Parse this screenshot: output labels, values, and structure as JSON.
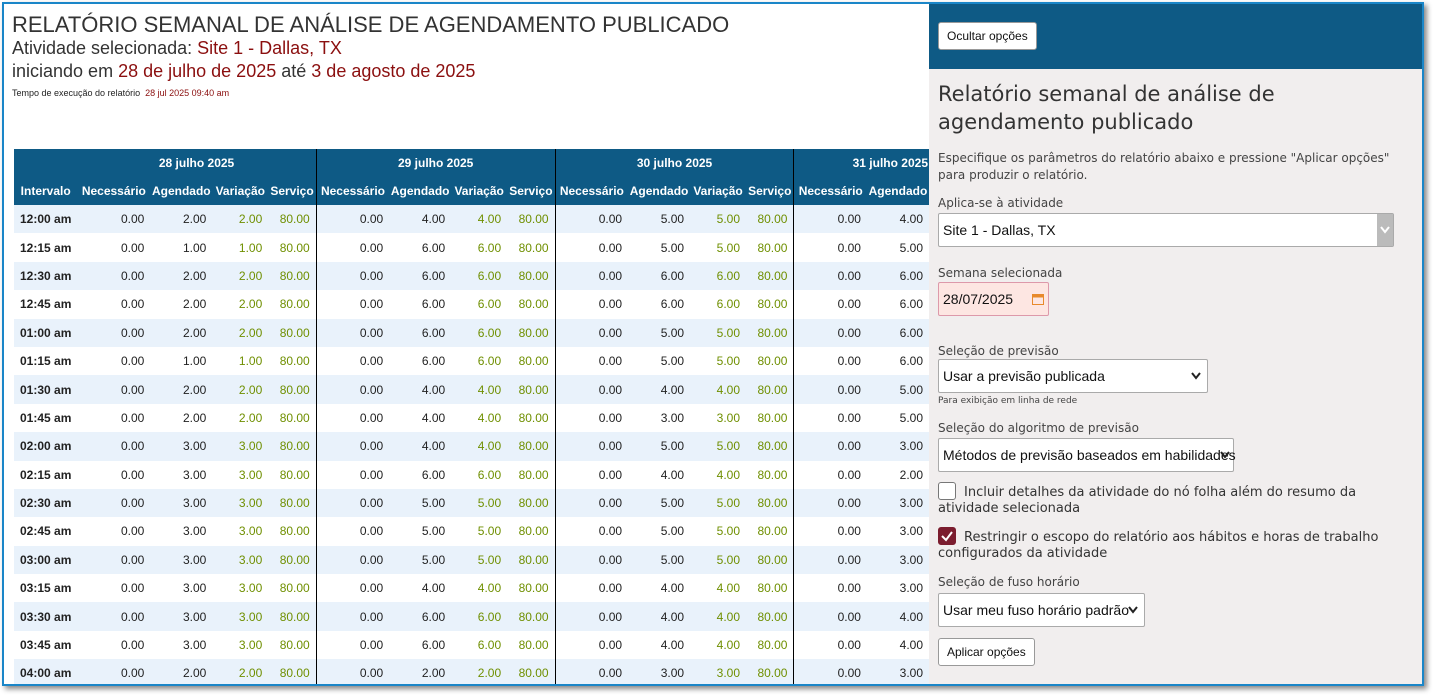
{
  "header": {
    "title": "RELATÓRIO SEMANAL DE ANÁLISE DE AGENDAMENTO PUBLICADO",
    "activity_label": "Atividade selecionada:",
    "activity": "Site 1 - Dallas, TX",
    "start_label": "iniciando em",
    "start": "28 de julho de 2025",
    "end_label": "até",
    "end": "3 de agosto de 2025",
    "runtime_label": "Tempo de execução do relatório",
    "runtime": "28 jul 2025 09:40 am"
  },
  "table": {
    "days": [
      "28 julho 2025",
      "29 julho 2025",
      "30 julho 2025",
      "31 julho 2025"
    ],
    "columns": [
      "Intervalo",
      "Necessário",
      "Agendado",
      "Variação",
      "Serviço",
      "Necessário",
      "Agendado",
      "Variação",
      "Serviço",
      "Necessário",
      "Agendado",
      "Variação",
      "Serviço",
      "Necessário",
      "Agendado"
    ],
    "rows": [
      [
        "12:00 am",
        "0.00",
        "2.00",
        "2.00",
        "80.00",
        "0.00",
        "4.00",
        "4.00",
        "80.00",
        "0.00",
        "5.00",
        "5.00",
        "80.00",
        "0.00",
        "4.00"
      ],
      [
        "12:15 am",
        "0.00",
        "1.00",
        "1.00",
        "80.00",
        "0.00",
        "6.00",
        "6.00",
        "80.00",
        "0.00",
        "5.00",
        "5.00",
        "80.00",
        "0.00",
        "5.00"
      ],
      [
        "12:30 am",
        "0.00",
        "2.00",
        "2.00",
        "80.00",
        "0.00",
        "6.00",
        "6.00",
        "80.00",
        "0.00",
        "6.00",
        "6.00",
        "80.00",
        "0.00",
        "6.00"
      ],
      [
        "12:45 am",
        "0.00",
        "2.00",
        "2.00",
        "80.00",
        "0.00",
        "6.00",
        "6.00",
        "80.00",
        "0.00",
        "6.00",
        "6.00",
        "80.00",
        "0.00",
        "6.00"
      ],
      [
        "01:00 am",
        "0.00",
        "2.00",
        "2.00",
        "80.00",
        "0.00",
        "6.00",
        "6.00",
        "80.00",
        "0.00",
        "5.00",
        "5.00",
        "80.00",
        "0.00",
        "6.00"
      ],
      [
        "01:15 am",
        "0.00",
        "1.00",
        "1.00",
        "80.00",
        "0.00",
        "6.00",
        "6.00",
        "80.00",
        "0.00",
        "5.00",
        "5.00",
        "80.00",
        "0.00",
        "6.00"
      ],
      [
        "01:30 am",
        "0.00",
        "2.00",
        "2.00",
        "80.00",
        "0.00",
        "4.00",
        "4.00",
        "80.00",
        "0.00",
        "4.00",
        "4.00",
        "80.00",
        "0.00",
        "5.00"
      ],
      [
        "01:45 am",
        "0.00",
        "2.00",
        "2.00",
        "80.00",
        "0.00",
        "4.00",
        "4.00",
        "80.00",
        "0.00",
        "3.00",
        "3.00",
        "80.00",
        "0.00",
        "5.00"
      ],
      [
        "02:00 am",
        "0.00",
        "3.00",
        "3.00",
        "80.00",
        "0.00",
        "4.00",
        "4.00",
        "80.00",
        "0.00",
        "5.00",
        "5.00",
        "80.00",
        "0.00",
        "3.00"
      ],
      [
        "02:15 am",
        "0.00",
        "3.00",
        "3.00",
        "80.00",
        "0.00",
        "6.00",
        "6.00",
        "80.00",
        "0.00",
        "4.00",
        "4.00",
        "80.00",
        "0.00",
        "2.00"
      ],
      [
        "02:30 am",
        "0.00",
        "3.00",
        "3.00",
        "80.00",
        "0.00",
        "5.00",
        "5.00",
        "80.00",
        "0.00",
        "5.00",
        "5.00",
        "80.00",
        "0.00",
        "3.00"
      ],
      [
        "02:45 am",
        "0.00",
        "3.00",
        "3.00",
        "80.00",
        "0.00",
        "5.00",
        "5.00",
        "80.00",
        "0.00",
        "5.00",
        "5.00",
        "80.00",
        "0.00",
        "3.00"
      ],
      [
        "03:00 am",
        "0.00",
        "3.00",
        "3.00",
        "80.00",
        "0.00",
        "5.00",
        "5.00",
        "80.00",
        "0.00",
        "5.00",
        "5.00",
        "80.00",
        "0.00",
        "3.00"
      ],
      [
        "03:15 am",
        "0.00",
        "3.00",
        "3.00",
        "80.00",
        "0.00",
        "4.00",
        "4.00",
        "80.00",
        "0.00",
        "4.00",
        "4.00",
        "80.00",
        "0.00",
        "3.00"
      ],
      [
        "03:30 am",
        "0.00",
        "3.00",
        "3.00",
        "80.00",
        "0.00",
        "6.00",
        "6.00",
        "80.00",
        "0.00",
        "4.00",
        "4.00",
        "80.00",
        "0.00",
        "4.00"
      ],
      [
        "03:45 am",
        "0.00",
        "3.00",
        "3.00",
        "80.00",
        "0.00",
        "6.00",
        "6.00",
        "80.00",
        "0.00",
        "4.00",
        "4.00",
        "80.00",
        "0.00",
        "4.00"
      ],
      [
        "04:00 am",
        "0.00",
        "2.00",
        "2.00",
        "80.00",
        "0.00",
        "2.00",
        "2.00",
        "80.00",
        "0.00",
        "3.00",
        "3.00",
        "80.00",
        "0.00",
        "3.00"
      ]
    ]
  },
  "panel": {
    "hide_button": "Ocultar opções",
    "title": "Relatório semanal de análise de agendamento publicado",
    "description": "Especifique os parâmetros do relatório abaixo e pressione \"Aplicar opções\" para produzir o relatório.",
    "activity_label": "Aplica-se à atividade",
    "activity_value": "Site 1 - Dallas, TX",
    "week_label": "Semana selecionada",
    "week_value": "28/07/2025",
    "forecast_label": "Seleção de previsão",
    "forecast_value": "Usar a previsão publicada",
    "forecast_note": "Para exibição em linha de rede",
    "algorithm_label": "Seleção do algoritmo de previsão",
    "algorithm_value": "Métodos de previsão baseados em habilidades",
    "checkbox1": "Incluir detalhes da atividade do nó folha além do resumo da atividade selecionada",
    "checkbox2": "Restringir o escopo do relatório aos hábitos e horas de trabalho configurados da atividade",
    "timezone_label": "Seleção de fuso horário",
    "timezone_value": "Usar meu fuso horário padrão",
    "apply_button": "Aplicar opções"
  }
}
